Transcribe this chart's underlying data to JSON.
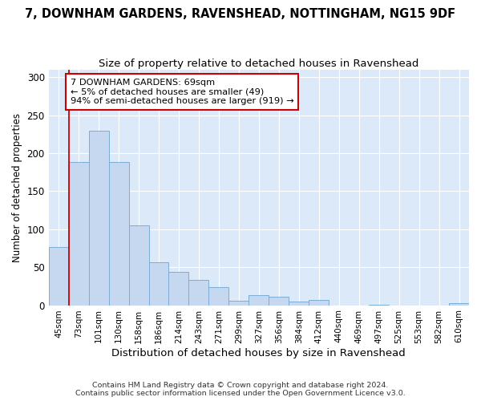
{
  "title": "7, DOWNHAM GARDENS, RAVENSHEAD, NOTTINGHAM, NG15 9DF",
  "subtitle": "Size of property relative to detached houses in Ravenshead",
  "xlabel": "Distribution of detached houses by size in Ravenshead",
  "ylabel": "Number of detached properties",
  "categories": [
    "45sqm",
    "73sqm",
    "101sqm",
    "130sqm",
    "158sqm",
    "186sqm",
    "214sqm",
    "243sqm",
    "271sqm",
    "299sqm",
    "327sqm",
    "356sqm",
    "384sqm",
    "412sqm",
    "440sqm",
    "469sqm",
    "497sqm",
    "525sqm",
    "553sqm",
    "582sqm",
    "610sqm"
  ],
  "bar_heights": [
    77,
    188,
    230,
    188,
    105,
    57,
    44,
    33,
    24,
    6,
    13,
    11,
    5,
    7,
    0,
    0,
    1,
    0,
    0,
    0,
    3
  ],
  "bar_color": "#c5d8f0",
  "bar_edgecolor": "#7badd4",
  "annotation_box_edgecolor": "#cc0000",
  "annotation_text": "7 DOWNHAM GARDENS: 69sqm\n← 5% of detached houses are smaller (49)\n94% of semi-detached houses are larger (919) →",
  "vline_color": "#cc0000",
  "background_color": "#dce9f8",
  "grid_color": "#ffffff",
  "footer": "Contains HM Land Registry data © Crown copyright and database right 2024.\nContains public sector information licensed under the Open Government Licence v3.0.",
  "ylim": [
    0,
    310
  ],
  "title_fontsize": 10.5,
  "subtitle_fontsize": 9.5,
  "ylabel_fontsize": 8.5,
  "xlabel_fontsize": 9.5
}
